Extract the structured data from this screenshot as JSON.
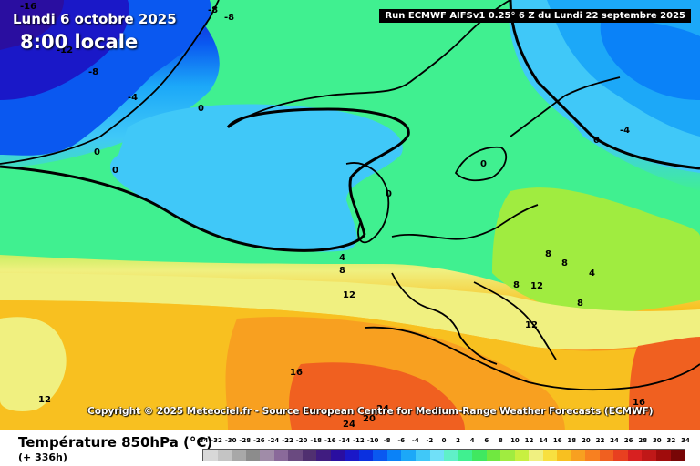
{
  "header": {
    "date": "Lundi 6 octobre 2025",
    "time": "8:00 locale",
    "run": "Run ECMWF AIFSv1 0.25° 6 Z du Lundi 22 septembre 2025"
  },
  "copyright": "Copyright © 2025 Meteociel.fr - Source European Centre for Medium-Range Weather Forecasts (ECMWF)",
  "footer": {
    "variable": "Température 850hPa (°C)",
    "lead": "(+ 336h)"
  },
  "scale": {
    "labels": [
      "-34",
      "-32",
      "-30",
      "-28",
      "-26",
      "-24",
      "-22",
      "-20",
      "-18",
      "-16",
      "-14",
      "-12",
      "-10",
      "-8",
      "-6",
      "-4",
      "-2",
      "0",
      "2",
      "4",
      "6",
      "8",
      "10",
      "12",
      "14",
      "16",
      "18",
      "20",
      "22",
      "24",
      "26",
      "28",
      "30",
      "32",
      "34"
    ],
    "colors": [
      "#d8d8d8",
      "#c4c4c4",
      "#a8a8a8",
      "#8c8c8c",
      "#a08ca8",
      "#8a6a9a",
      "#6a4a80",
      "#503070",
      "#401c80",
      "#2a0ea0",
      "#1a18c8",
      "#0a30e0",
      "#0a58f0",
      "#0a82f8",
      "#1ca8f8",
      "#40c8f8",
      "#70e0f8",
      "#60f0c8",
      "#40f090",
      "#40e860",
      "#70e840",
      "#a0ec40",
      "#c8f040",
      "#f0f080",
      "#f8e040",
      "#f8c020",
      "#f8a020",
      "#f88020",
      "#f06020",
      "#e84020",
      "#d82020",
      "#c01818",
      "#a00c0c",
      "#780606"
    ]
  },
  "isotherm_labels": [
    "-16",
    "-8",
    "-8",
    "-12",
    "-8",
    "-4",
    "0",
    "0",
    "0",
    "0",
    "0",
    "0",
    "-4",
    "4",
    "8",
    "12",
    "8",
    "8",
    "4",
    "12",
    "8",
    "8",
    "12",
    "16",
    "12",
    "16",
    "24",
    "20",
    "24"
  ],
  "colors": {
    "contour": "#000000",
    "run_bg": "#000000"
  }
}
